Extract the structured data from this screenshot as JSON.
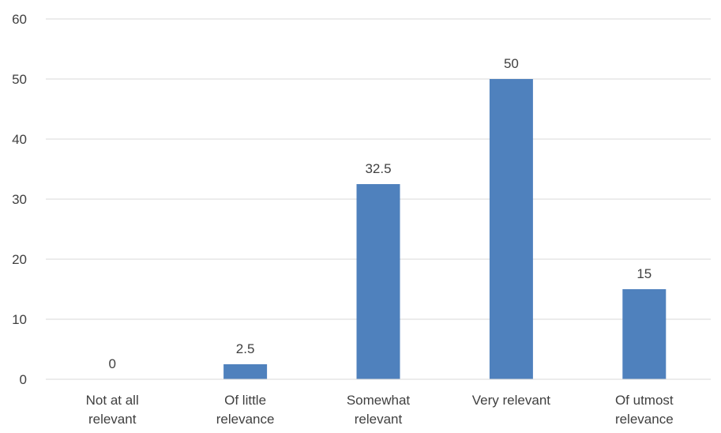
{
  "chart_data": {
    "type": "bar",
    "categories": [
      [
        "Not at all",
        "relevant"
      ],
      [
        "Of little",
        "relevance"
      ],
      [
        "Somewhat",
        "relevant"
      ],
      [
        "Very relevant"
      ],
      [
        "Of utmost",
        "relevance"
      ]
    ],
    "values": [
      0,
      2.5,
      32.5,
      50,
      15
    ],
    "data_labels": [
      "0",
      "2.5",
      "32.5",
      "50",
      "15"
    ],
    "ylim": [
      0,
      60
    ],
    "yticks": [
      0,
      10,
      20,
      30,
      40,
      50,
      60
    ],
    "grid": true,
    "legend": "none",
    "bar_color": "#4f81bd"
  }
}
